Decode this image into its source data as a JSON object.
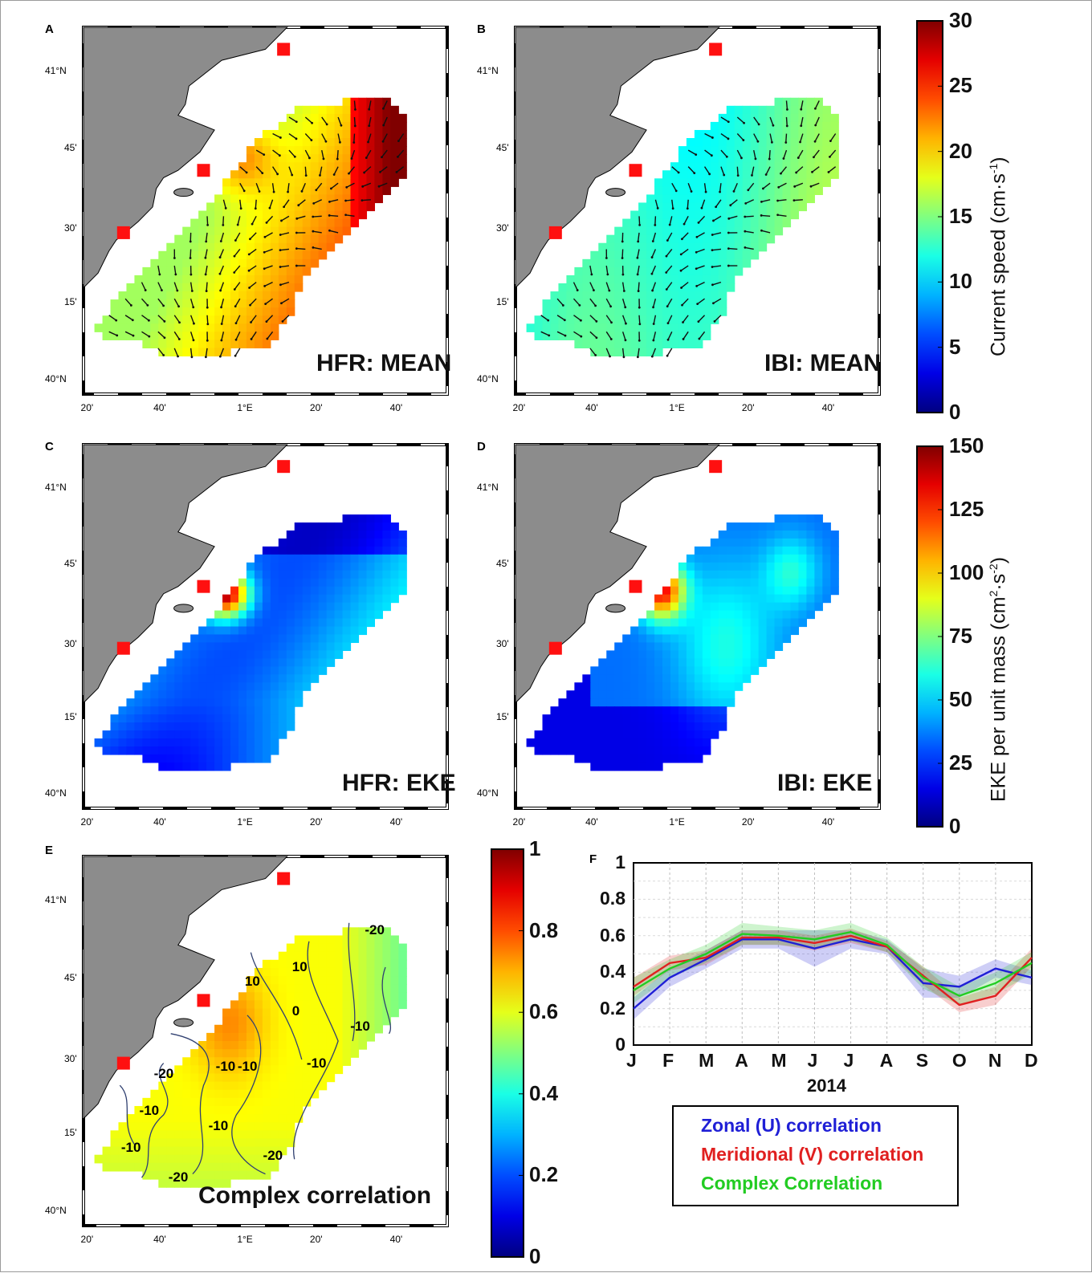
{
  "map_labels": {
    "lat_41": "41°N",
    "lat_45": "45'",
    "lat_30": "30'",
    "lat_15": "15'",
    "lat_40": "40°N",
    "lon_20w": "20'",
    "lon_40w": "40'",
    "lon_1e": "1°E",
    "lon_20e": "20'",
    "lon_40e": "40'"
  },
  "panels": [
    {
      "letter": "A",
      "title": "HFR:  MEAN"
    },
    {
      "letter": "B",
      "title": "IBI: MEAN"
    },
    {
      "letter": "C",
      "title": "HFR: EKE"
    },
    {
      "letter": "D",
      "title": "IBI: EKE"
    },
    {
      "letter": "E",
      "title": "Complex correlation"
    },
    {
      "letter": "F",
      "title": ""
    }
  ],
  "colorbars": [
    {
      "title_main": "Current speed (cm·s",
      "title_sup": "-1",
      "title_end": ")",
      "ticks": [
        "30",
        "25",
        "20",
        "15",
        "10",
        "5",
        "0"
      ]
    },
    {
      "title_main": "EKE per unit mass (cm",
      "title_sup": "2",
      "title_mid": "·s",
      "title_sup2": "-2",
      "title_end": ")",
      "ticks": [
        "150",
        "125",
        "100",
        "75",
        "50",
        "25",
        "0"
      ]
    },
    {
      "ticks": [
        "1",
        "0.8",
        "0.6",
        "0.4",
        "0.2",
        "0"
      ]
    }
  ],
  "contour_labels": [
    "-20",
    "10",
    "10",
    "0",
    "-10",
    "-10",
    "-10",
    "-20",
    "-10",
    "-10",
    "-10",
    "-20",
    "-20",
    "-10"
  ],
  "chart_data": {
    "type": "line",
    "xlabel": "2014",
    "categories": [
      "J",
      "F",
      "M",
      "A",
      "M",
      "J",
      "J",
      "A",
      "S",
      "O",
      "N",
      "D"
    ],
    "ylim": [
      0,
      1
    ],
    "yticks": [
      "0",
      "0.2",
      "0.4",
      "0.6",
      "0.8",
      "1"
    ],
    "grid": true,
    "legend_position": "below",
    "series": [
      {
        "name": "Zonal (U) correlation",
        "color": "#1f1fd6",
        "values": [
          0.2,
          0.37,
          0.47,
          0.58,
          0.58,
          0.53,
          0.58,
          0.54,
          0.34,
          0.32,
          0.42,
          0.37
        ],
        "band": [
          0.06,
          0.05,
          0.05,
          0.05,
          0.05,
          0.1,
          0.05,
          0.04,
          0.08,
          0.06,
          0.05,
          0.04
        ]
      },
      {
        "name": "Meridional (V)  correlation",
        "color": "#e02020",
        "values": [
          0.32,
          0.45,
          0.48,
          0.59,
          0.59,
          0.56,
          0.6,
          0.54,
          0.38,
          0.22,
          0.27,
          0.48
        ],
        "band": [
          0.05,
          0.04,
          0.04,
          0.04,
          0.04,
          0.04,
          0.04,
          0.03,
          0.05,
          0.04,
          0.05,
          0.05
        ]
      },
      {
        "name": "Complex Correlation",
        "color": "#22cc22",
        "values": [
          0.3,
          0.42,
          0.5,
          0.61,
          0.6,
          0.58,
          0.62,
          0.55,
          0.37,
          0.27,
          0.34,
          0.45
        ],
        "band": [
          0.07,
          0.05,
          0.05,
          0.06,
          0.05,
          0.05,
          0.05,
          0.04,
          0.06,
          0.05,
          0.06,
          0.06
        ]
      }
    ]
  }
}
